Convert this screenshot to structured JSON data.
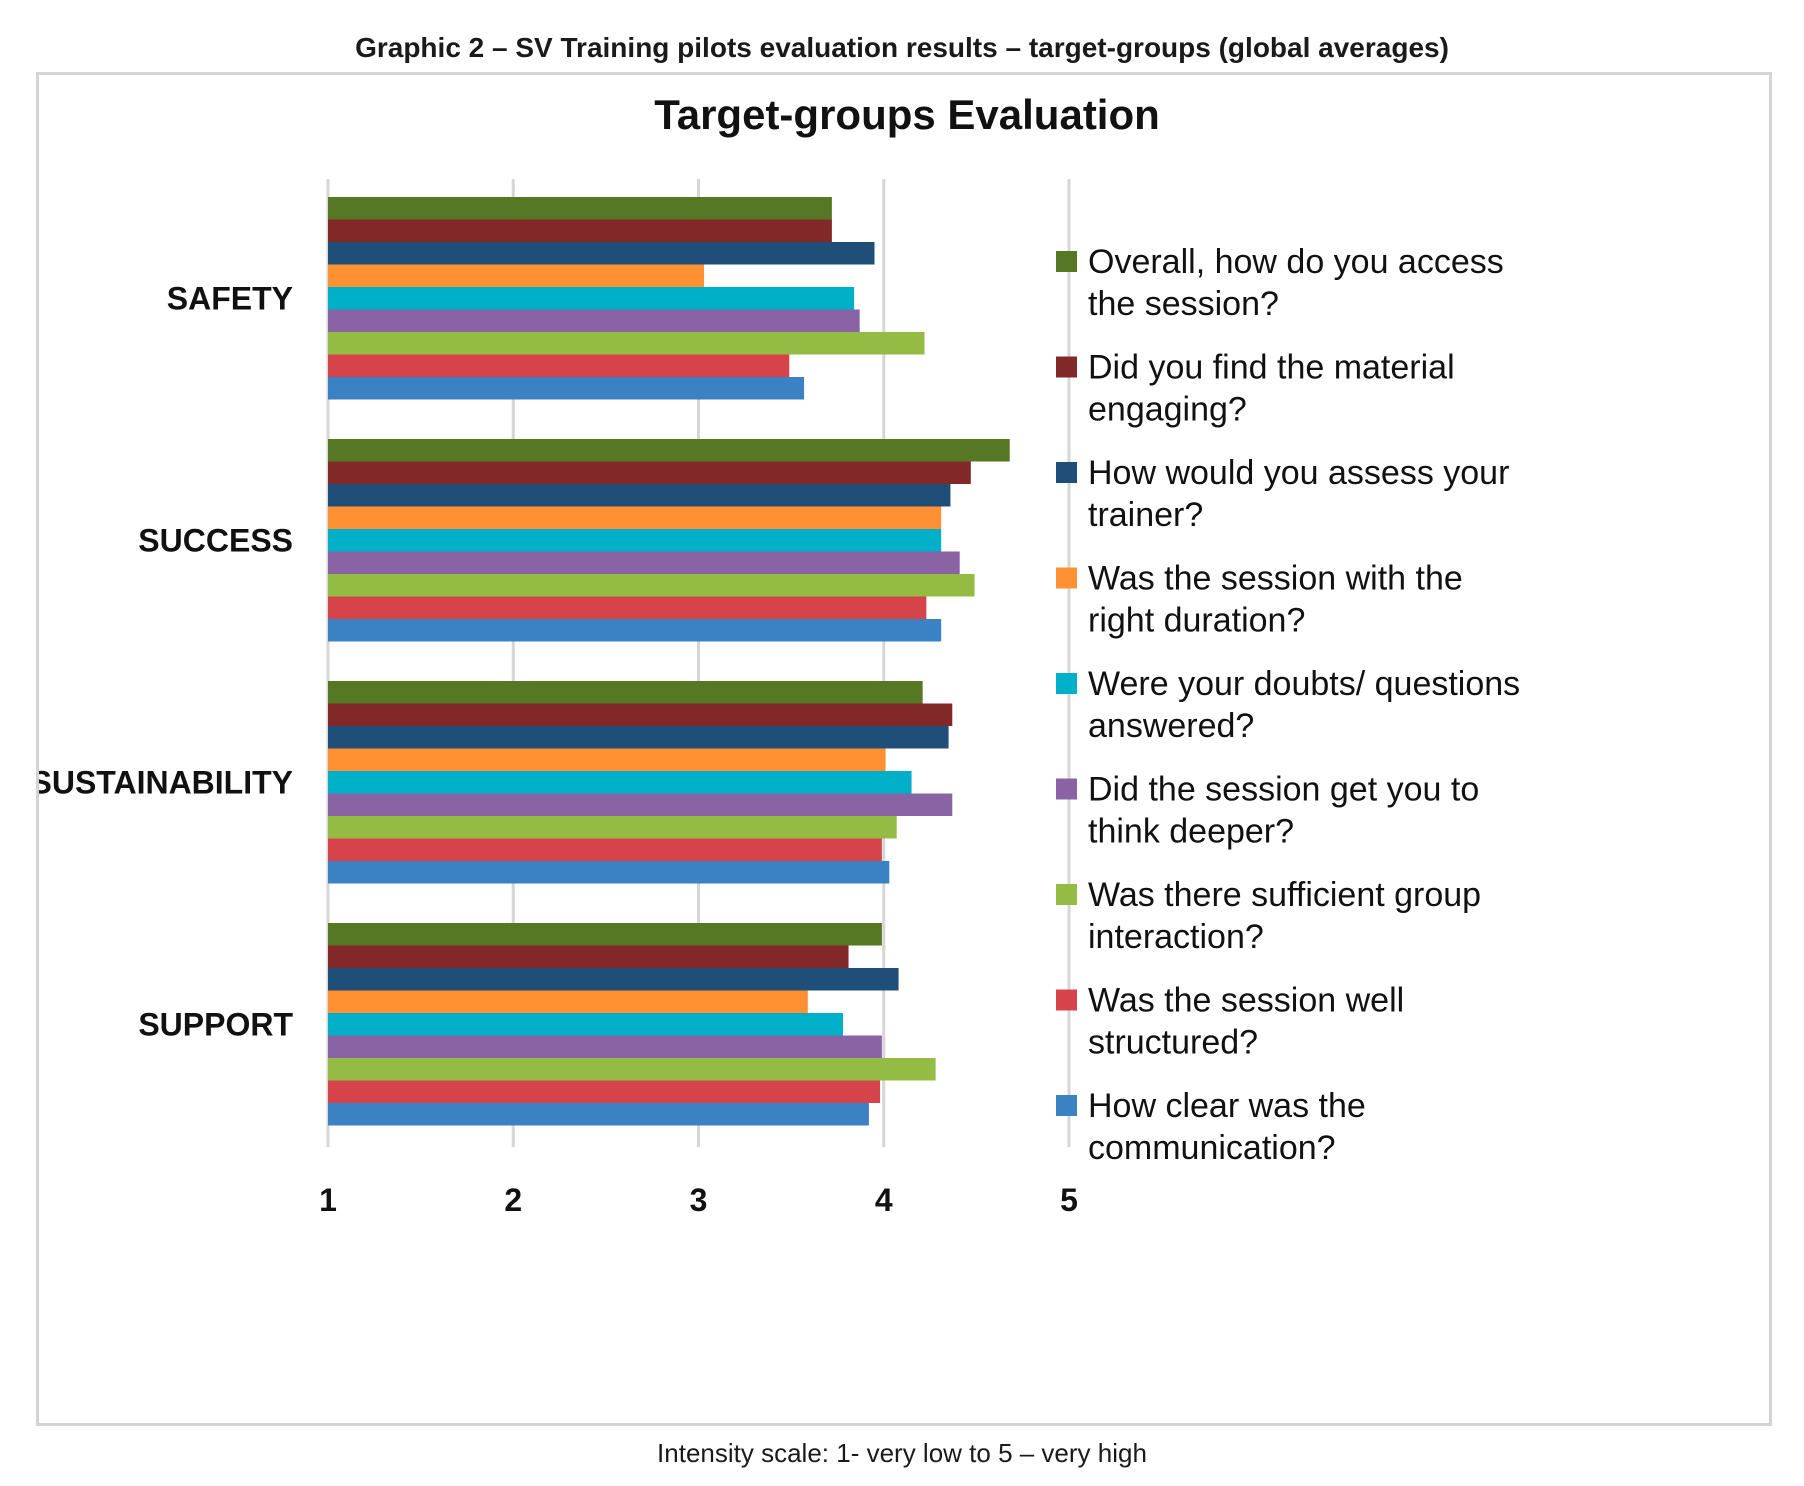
{
  "page": {
    "caption": "Graphic 2 – SV Training pilots evaluation results – target-groups (global averages)",
    "footnote": "Intensity scale: 1- very low to 5 – very high"
  },
  "chart_data": {
    "type": "bar",
    "orientation": "horizontal",
    "title": "Target-groups Evaluation",
    "categories": [
      "SAFETY",
      "SUCCESS",
      "SUSTAINABILITY",
      "SUPPORT"
    ],
    "xlim": [
      1,
      5
    ],
    "x_ticks": [
      "1",
      "2",
      "3",
      "4",
      "5"
    ],
    "grid": "vertical",
    "legend_position": "right",
    "series": [
      {
        "name": "Overall, how do you access the session?",
        "color": "#567724",
        "values": [
          3.72,
          4.68,
          4.21,
          3.99
        ]
      },
      {
        "name": "Did you find the material engaging?",
        "color": "#832829",
        "values": [
          3.72,
          4.47,
          4.37,
          3.81
        ]
      },
      {
        "name": "How would you assess your trainer?",
        "color": "#1f4e79",
        "values": [
          3.95,
          4.36,
          4.35,
          4.08
        ]
      },
      {
        "name": "Was the session with the right duration?",
        "color": "#ff9132",
        "values": [
          3.03,
          4.31,
          4.01,
          3.59
        ]
      },
      {
        "name": "Were your doubts/ questions answered?",
        "color": "#00afc8",
        "values": [
          3.84,
          4.31,
          4.15,
          3.78
        ]
      },
      {
        "name": "Did the session get you to think deeper?",
        "color": "#8a63a4",
        "values": [
          3.87,
          4.41,
          4.37,
          3.99
        ]
      },
      {
        "name": "Was there sufficient group interaction?",
        "color": "#94bc45",
        "values": [
          4.22,
          4.49,
          4.07,
          4.28
        ]
      },
      {
        "name": "Was the session well structured?",
        "color": "#d7434b",
        "values": [
          3.49,
          4.23,
          3.99,
          3.98
        ]
      },
      {
        "name": "How clear was  the communication?",
        "color": "#3b82c4",
        "values": [
          3.57,
          4.31,
          4.03,
          3.92
        ]
      }
    ]
  }
}
